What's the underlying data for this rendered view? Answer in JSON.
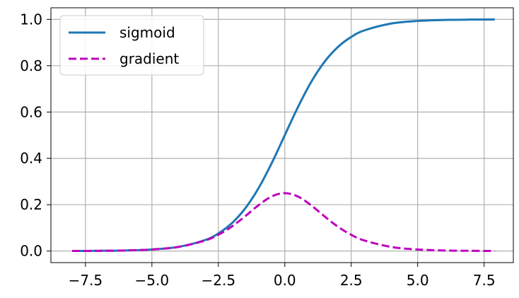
{
  "chart_data": {
    "type": "line",
    "title": "",
    "xlabel": "",
    "ylabel": "",
    "xlim": [
      -8.8,
      8.6
    ],
    "ylim": [
      -0.05,
      1.05
    ],
    "grid": true,
    "legend_position": "top-left",
    "x_ticks": [
      -7.5,
      -5.0,
      -2.5,
      0.0,
      2.5,
      5.0,
      7.5
    ],
    "x_tick_labels": [
      "−7.5",
      "−5.0",
      "−2.5",
      "0.0",
      "2.5",
      "5.0",
      "7.5"
    ],
    "y_ticks": [
      0.0,
      0.2,
      0.4,
      0.6,
      0.8,
      1.0
    ],
    "y_tick_labels": [
      "0.0",
      "0.2",
      "0.4",
      "0.6",
      "0.8",
      "1.0"
    ],
    "x": [
      -8.0,
      -7.0,
      -6.0,
      -5.0,
      -4.0,
      -3.0,
      -2.5,
      -2.0,
      -1.5,
      -1.0,
      -0.5,
      0.0,
      0.5,
      1.0,
      1.5,
      2.0,
      2.5,
      3.0,
      4.0,
      5.0,
      6.0,
      7.0,
      7.9
    ],
    "series": [
      {
        "name": "sigmoid",
        "style": "solid",
        "color": "#1f77b4",
        "values": [
          0.0003,
          0.0009,
          0.0025,
          0.0067,
          0.018,
          0.0474,
          0.0759,
          0.1192,
          0.1824,
          0.2689,
          0.3775,
          0.5,
          0.6225,
          0.7311,
          0.8176,
          0.8808,
          0.9241,
          0.9526,
          0.982,
          0.9933,
          0.9975,
          0.9991,
          0.9996
        ]
      },
      {
        "name": "gradient",
        "style": "dashed",
        "color": "#bf00bf",
        "values": [
          0.0003,
          0.0009,
          0.0025,
          0.0066,
          0.0177,
          0.0452,
          0.0701,
          0.105,
          0.1491,
          0.1966,
          0.235,
          0.25,
          0.235,
          0.1966,
          0.1491,
          0.105,
          0.0701,
          0.0452,
          0.0177,
          0.0066,
          0.0025,
          0.0009,
          0.0004
        ]
      }
    ]
  }
}
